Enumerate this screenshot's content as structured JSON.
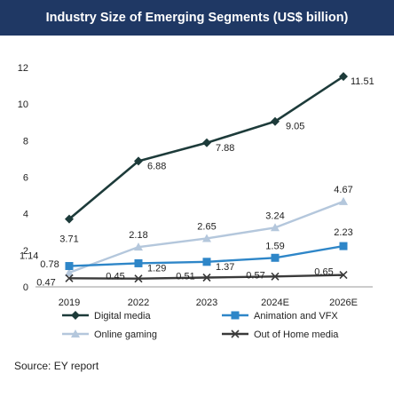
{
  "title": "Industry Size of Emerging Segments (US$ billion)",
  "source": "Source: EY report",
  "chart_data": {
    "type": "line",
    "categories": [
      "2019",
      "2022",
      "2023",
      "2024E",
      "2026E"
    ],
    "ylim": [
      0,
      12
    ],
    "yticks": [
      0,
      2,
      4,
      6,
      8,
      10,
      12
    ],
    "grid": false,
    "legend_position": "bottom",
    "series": [
      {
        "name": "Digital media",
        "values": [
          3.71,
          6.88,
          7.88,
          9.05,
          11.51
        ],
        "labels": [
          "3.71",
          "6.88",
          "7.88",
          "9.05",
          "11.51"
        ],
        "color": "#1d3b3a",
        "marker": "diamond"
      },
      {
        "name": "Animation and VFX",
        "values": [
          1.14,
          1.29,
          1.37,
          1.59,
          2.23
        ],
        "labels": [
          "1.14",
          "1.29",
          "1.37",
          "1.59",
          "2.23"
        ],
        "color": "#2e86c8",
        "marker": "square"
      },
      {
        "name": "Online gaming",
        "values": [
          0.78,
          2.18,
          2.65,
          3.24,
          4.67
        ],
        "labels": [
          "0.78",
          "2.18",
          "2.65",
          "3.24",
          "4.67"
        ],
        "color": "#b4c7dc",
        "marker": "triangle"
      },
      {
        "name": "Out of Home media",
        "values": [
          0.47,
          0.45,
          0.51,
          0.57,
          0.65
        ],
        "labels": [
          "0.47",
          "0.45",
          "0.51",
          "0.57",
          "0.65"
        ],
        "color": "#3a3a3a",
        "marker": "x"
      }
    ]
  }
}
